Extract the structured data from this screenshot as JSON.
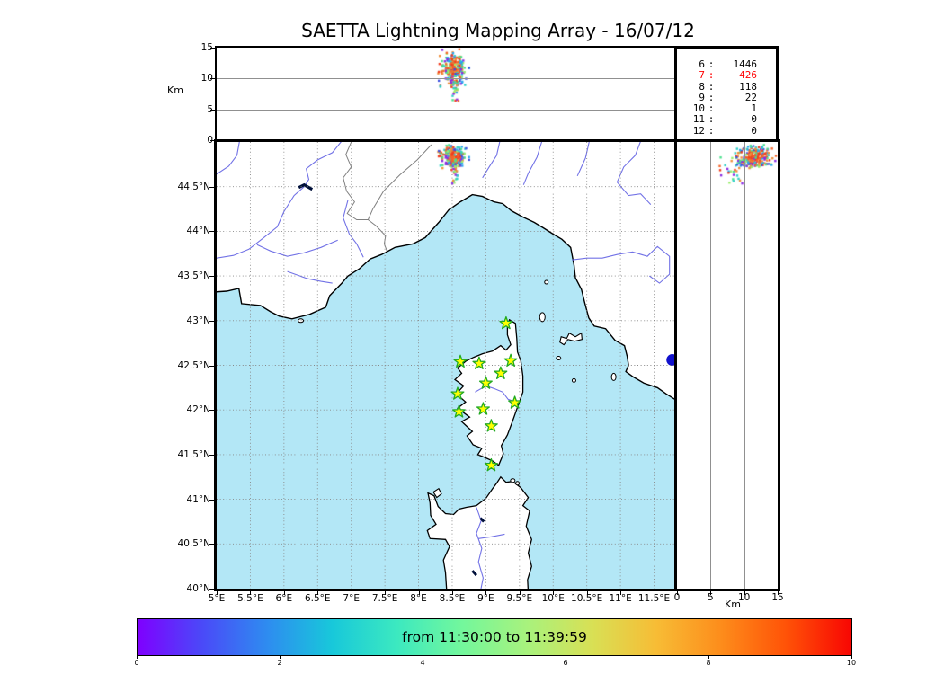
{
  "title": "SAETTA Lightning Mapping Array - 16/07/12",
  "chart_data": {
    "type": "scatter",
    "title": "SAETTA Lightning Mapping Array - 16/07/12",
    "time_window_label": "from 11:30:00 to 11:39:59",
    "panels": {
      "top": {
        "ylabel": "Km",
        "yticks": [
          0,
          5,
          10,
          15
        ],
        "ylim": [
          0,
          15
        ],
        "grid_y": [
          5,
          10
        ]
      },
      "map": {
        "lon_lim": [
          5,
          11.8
        ],
        "lat_lim": [
          40,
          45
        ],
        "lon_ticks": [
          {
            "v": 5,
            "label": "5°E"
          },
          {
            "v": 5.5,
            "label": "5.5°E"
          },
          {
            "v": 6,
            "label": "6°E"
          },
          {
            "v": 6.5,
            "label": "6.5°E"
          },
          {
            "v": 7,
            "label": "7°E"
          },
          {
            "v": 7.5,
            "label": "7.5°E"
          },
          {
            "v": 8,
            "label": "8°E"
          },
          {
            "v": 8.5,
            "label": "8.5°E"
          },
          {
            "v": 9,
            "label": "9°E"
          },
          {
            "v": 9.5,
            "label": "9.5°E"
          },
          {
            "v": 10,
            "label": "10°E"
          },
          {
            "v": 10.5,
            "label": "10.5°E"
          },
          {
            "v": 11,
            "label": "11°E"
          },
          {
            "v": 11.5,
            "label": "11.5°E"
          }
        ],
        "lat_ticks": [
          {
            "v": 40,
            "label": "40°N"
          },
          {
            "v": 40.5,
            "label": "40.5°N"
          },
          {
            "v": 41,
            "label": "41°N"
          },
          {
            "v": 41.5,
            "label": "41.5°N"
          },
          {
            "v": 42,
            "label": "42°N"
          },
          {
            "v": 42.5,
            "label": "42.5°N"
          },
          {
            "v": 43,
            "label": "43°N"
          },
          {
            "v": 43.5,
            "label": "43.5°N"
          },
          {
            "v": 44,
            "label": "44°N"
          },
          {
            "v": 44.5,
            "label": "44.5°N"
          }
        ]
      },
      "right": {
        "xlabel": "Km",
        "xticks": [
          0,
          5,
          10,
          15
        ],
        "xlim": [
          0,
          15
        ],
        "grid_x": [
          5,
          10
        ]
      }
    },
    "altitude_counts": {
      "rows": [
        {
          "level": "6",
          "count": "1446",
          "color": "#000000"
        },
        {
          "level": "7",
          "count": "426",
          "color": "#ff0000"
        },
        {
          "level": "8",
          "count": "118",
          "color": "#000000"
        },
        {
          "level": "9",
          "count": "22",
          "color": "#000000"
        },
        {
          "level": "10",
          "count": "1",
          "color": "#000000"
        },
        {
          "level": "11",
          "count": "0",
          "color": "#000000"
        },
        {
          "level": "12",
          "count": "0",
          "color": "#000000"
        }
      ]
    },
    "colorbar": {
      "label": "from 11:30:00 to 11:39:59",
      "ticks": [
        "0",
        "2",
        "4",
        "6",
        "8",
        "10"
      ],
      "range": [
        0,
        10
      ],
      "gradient": [
        "#7f00ff",
        "#4a4af8",
        "#2e8cf0",
        "#18c8da",
        "#3ce9c0",
        "#73f79c",
        "#a8f27d",
        "#d8e055",
        "#f7bc35",
        "#fd8c1b",
        "#ff5207",
        "#f80603"
      ]
    },
    "stations_lonlat": [
      [
        9.3,
        42.97
      ],
      [
        8.62,
        42.54
      ],
      [
        8.9,
        42.52
      ],
      [
        9.37,
        42.55
      ],
      [
        9.22,
        42.41
      ],
      [
        9.0,
        42.3
      ],
      [
        8.58,
        42.18
      ],
      [
        9.43,
        42.08
      ],
      [
        8.96,
        42.01
      ],
      [
        8.6,
        41.98
      ],
      [
        9.08,
        41.82
      ],
      [
        9.08,
        41.38
      ]
    ],
    "station_style": {
      "fill": "#ffff00",
      "stroke": "#22aa22"
    },
    "storm_cluster": {
      "lon": 8.53,
      "lat": 44.83,
      "alt_km": 11.6,
      "sigma_lon": 0.085,
      "sigma_lat": 0.06,
      "sigma_alt": 1.2,
      "n_points": 300,
      "tail_fraction": 0.12,
      "palette_warm": [
        "#f23b1c",
        "#f4652a",
        "#ef8f3a"
      ],
      "palette_all": [
        "#2fd0c8",
        "#49e08c",
        "#9bee6e",
        "#3b4fe0",
        "#8a2be2",
        "#2aa6f0",
        "#f4652a",
        "#f23b1c",
        "#ef8f3a"
      ]
    },
    "map_colors": {
      "sea": "#b3e7f6",
      "land": "#ffffff",
      "coast": "#000000",
      "river": "#7272e6",
      "border": "#808080",
      "lake": "#1111cc",
      "grid": "#888888"
    }
  }
}
